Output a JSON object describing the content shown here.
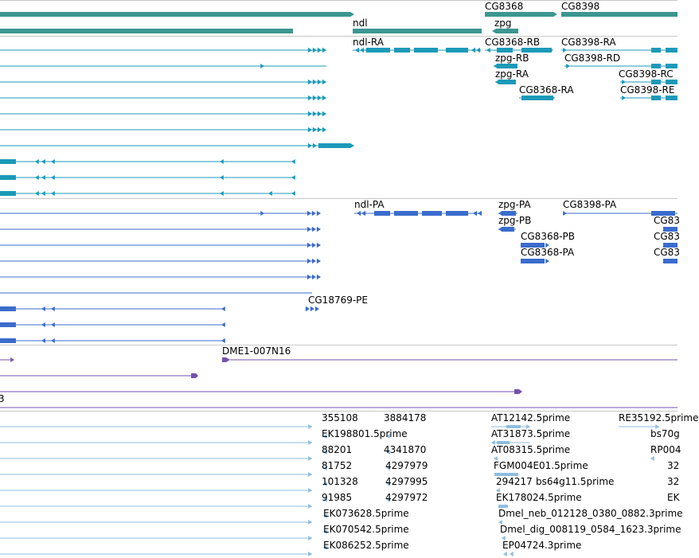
{
  "colors": {
    "gene": "#3b9690",
    "mrna": "#1b9ab8",
    "protein": "#3a6ccc",
    "clone": "#7352ab",
    "est": "#8fbde0",
    "separator": "#c8c8c8"
  },
  "tracks": {
    "genes": {
      "labels": [
        "CG8368",
        "CG8398",
        "ndl",
        "zpg"
      ]
    },
    "transcripts": {
      "labels": [
        "ndl-RA",
        "CG8368-RB",
        "CG8398-RA",
        "zpg-RB",
        "CG8398-RD",
        "zpg-RA",
        "CG8398-RC",
        "CG8368-RA",
        "CG8398-RE"
      ]
    },
    "proteins": {
      "labels": [
        "ndl-PA",
        "zpg-PA",
        "CG8398-PA",
        "zpg-PB",
        "CG8368-PB",
        "CG8368-PA",
        "CG18769-PE",
        "CG83",
        "CG83",
        "CG83"
      ]
    },
    "clones": {
      "labels": [
        "DME1-007N16",
        "3"
      ]
    },
    "ests": {
      "labels": [
        "355108",
        "3884178",
        "AT12142.5prime",
        "RE35192.5prime",
        "EK198801.5prime",
        "AT31873.5prime",
        "bs70g",
        "88201",
        "4341870",
        "AT08315.5prime",
        "RP004",
        "81752",
        "4297979",
        "FGM004E01.5prime",
        "32",
        "101328",
        "4297995",
        "294217",
        "bs64g11.5prime",
        "32",
        "91985",
        "4297972",
        "EK178024.5prime",
        "EK",
        "EK073628.5prime",
        "Dmel_neb_012128_0380_0882.3prime",
        "EK070542.5prime",
        "Dmel_dig_008119_0584_1623.3prime",
        "EK086252.5prime",
        "EP04724.3prime"
      ]
    }
  }
}
